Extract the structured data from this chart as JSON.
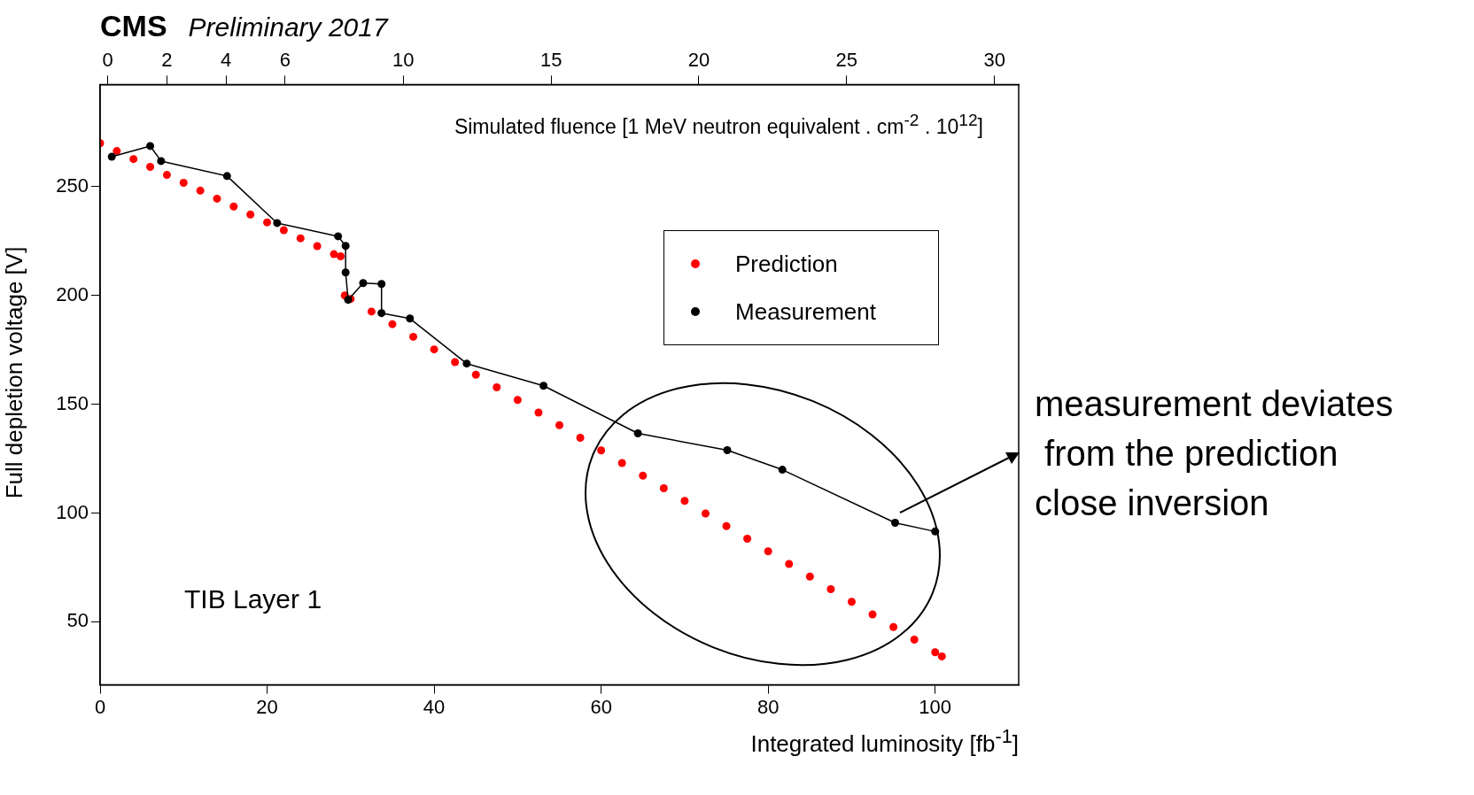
{
  "chart_data": {
    "type": "scatter",
    "title": "CMS",
    "subtitle": "Preliminary 2017",
    "xlabel": "Integrated luminosity [fb$^{-1}$]",
    "ylabel": "Full depletion voltage [V]",
    "x2label": "Simulated fluence [1 MeV neutron equivalent . cm$^{-2}$ . 10$^{12}$]",
    "xlim": [
      0,
      110
    ],
    "xticks": [
      0,
      20,
      40,
      60,
      80,
      100
    ],
    "x2lim": [
      -0.26,
      30.82
    ],
    "x2ticks": [
      0,
      2,
      4,
      6,
      10,
      15,
      20,
      25,
      30
    ],
    "ylim": [
      21,
      297
    ],
    "yticks": [
      50,
      100,
      150,
      200,
      250
    ],
    "grid": false,
    "legend": "top right",
    "series": [
      {
        "name": "Prediction",
        "type": "scatter",
        "marker": "circle",
        "color": "#ff0000",
        "x": [
          0,
          2,
          4,
          6,
          8,
          10,
          12,
          14,
          16,
          18,
          20,
          22,
          24,
          26,
          28,
          28.8,
          29.3,
          30,
          32.5,
          35,
          37.5,
          40,
          42.5,
          45,
          47.5,
          50,
          52.5,
          55,
          57.5,
          60,
          62.5,
          65,
          67.5,
          70,
          72.5,
          75,
          77.5,
          80,
          82.5,
          85,
          87.5,
          90,
          92.5,
          95,
          97.5,
          100,
          100.8
        ],
        "values": [
          270,
          266.4,
          262.7,
          259.1,
          255.4,
          251.8,
          248.2,
          244.5,
          240.9,
          237.2,
          233.6,
          230,
          226.3,
          222.7,
          219,
          218,
          200,
          198.4,
          192.6,
          186.8,
          181,
          175.2,
          169.4,
          163.6,
          157.8,
          152,
          146.2,
          140.4,
          134.6,
          128.8,
          123,
          117.2,
          111.4,
          105.6,
          99.8,
          94,
          88.2,
          82.4,
          76.6,
          70.8,
          65,
          59.2,
          53.4,
          47.6,
          41.8,
          36,
          34.1
        ]
      },
      {
        "name": "Measurement",
        "type": "line",
        "marker": "circle",
        "line_style": "solid",
        "color": "#000000",
        "x": [
          1.4,
          6.0,
          7.3,
          15.2,
          21.2,
          28.5,
          29.4,
          29.4,
          29.7,
          31.5,
          33.7,
          33.7,
          37.1,
          43.9,
          53.1,
          64.4,
          75.1,
          81.7,
          95.2,
          100.0
        ],
        "values": [
          263.8,
          268.7,
          261.8,
          254.9,
          233.3,
          227.2,
          222.8,
          210.6,
          198.0,
          205.7,
          205.3,
          191.9,
          189.4,
          168.7,
          158.5,
          136.6,
          128.9,
          119.9,
          95.5,
          91.5
        ]
      }
    ],
    "annotations": [
      "TIB Layer 1",
      "measurement deviates\n from the prediction\nclose inversion"
    ]
  }
}
